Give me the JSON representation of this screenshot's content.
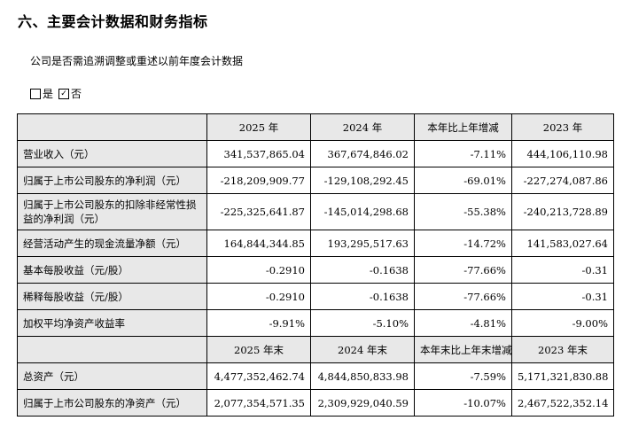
{
  "title": "六、主要会计数据和财务指标",
  "question": "公司是否需追溯调整或重述以前年度会计数据",
  "options": [
    {
      "label": "是",
      "checked": false,
      "mark": ""
    },
    {
      "label": "否",
      "checked": true,
      "mark": "✓"
    }
  ],
  "table1": {
    "headers": [
      "2025 年",
      "2024 年",
      "本年比上年增减",
      "2023 年"
    ],
    "rows": [
      {
        "label": "营业收入（元）",
        "values": [
          "341,537,865.04",
          "367,674,846.02",
          "-7.11%",
          "444,106,110.98"
        ]
      },
      {
        "label": "归属于上市公司股东的净利润（元）",
        "values": [
          "-218,209,909.77",
          "-129,108,292.45",
          "-69.01%",
          "-227,274,087.86"
        ]
      },
      {
        "label": "归属于上市公司股东的扣除非经常性损益的净利润（元）",
        "values": [
          "-225,325,641.87",
          "-145,014,298.68",
          "-55.38%",
          "-240,213,728.89"
        ]
      },
      {
        "label": "经营活动产生的现金流量净额（元）",
        "values": [
          "164,844,344.85",
          "193,295,517.63",
          "-14.72%",
          "141,583,027.64"
        ]
      },
      {
        "label": "基本每股收益（元/股）",
        "values": [
          "-0.2910",
          "-0.1638",
          "-77.66%",
          "-0.31"
        ]
      },
      {
        "label": "稀释每股收益（元/股）",
        "values": [
          "-0.2910",
          "-0.1638",
          "-77.66%",
          "-0.31"
        ]
      },
      {
        "label": "加权平均净资产收益率",
        "values": [
          "-9.91%",
          "-5.10%",
          "-4.81%",
          "-9.00%"
        ]
      }
    ]
  },
  "table2": {
    "headers": [
      "2025 年末",
      "2024 年末",
      "本年末比上年末增减",
      "2023 年末"
    ],
    "rows": [
      {
        "label": "总资产（元）",
        "values": [
          "4,477,352,462.74",
          "4,844,850,833.98",
          "-7.59%",
          "5,171,321,830.88"
        ]
      },
      {
        "label": "归属于上市公司股东的净资产（元）",
        "values": [
          "2,077,354,571.35",
          "2,309,929,040.59",
          "-10.07%",
          "2,467,522,352.14"
        ]
      }
    ]
  }
}
